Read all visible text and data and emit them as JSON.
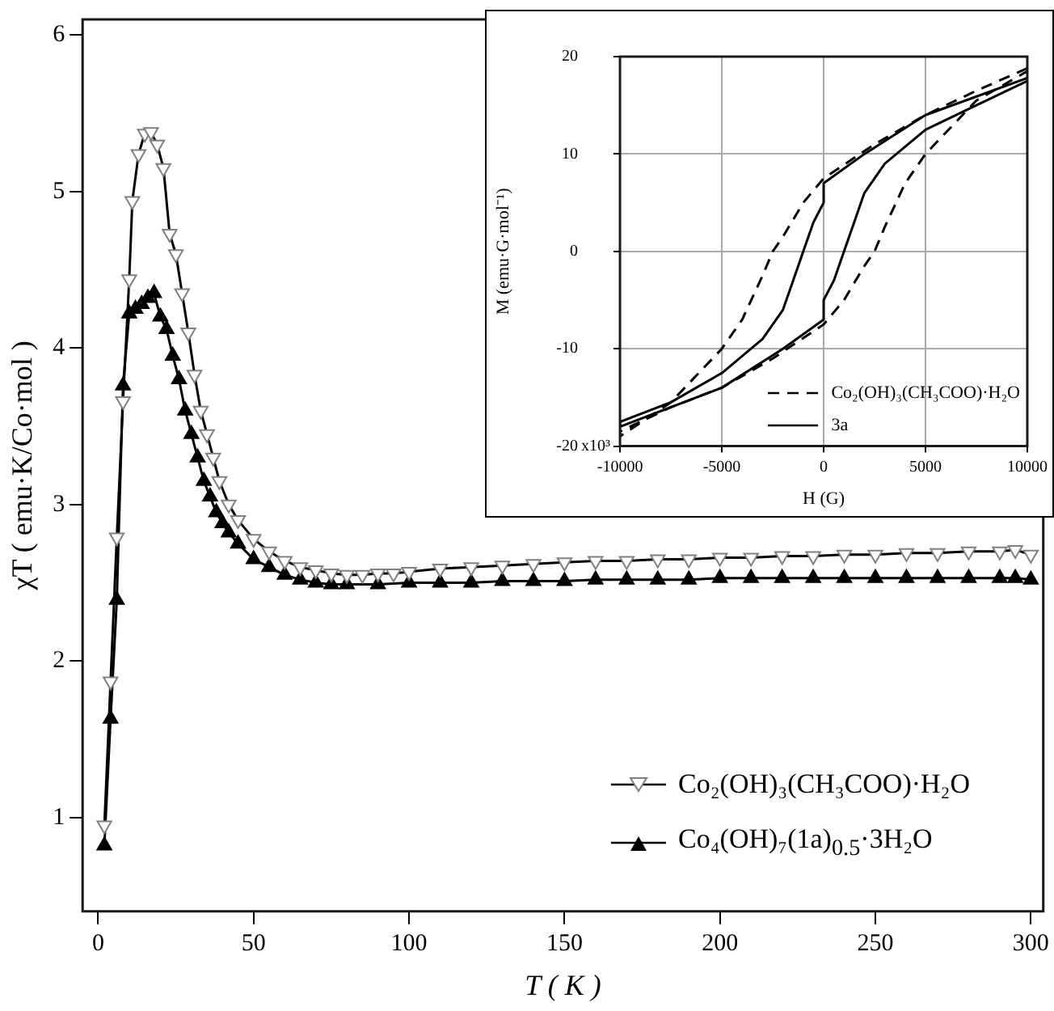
{
  "chart_data": [
    {
      "type": "line",
      "xlabel": "T ( K )",
      "ylabel": "χT ( emu·K/Co·mol )",
      "xlim": [
        -5,
        304
      ],
      "ylim": [
        0.4,
        6.1
      ],
      "xticks": [
        0,
        50,
        100,
        150,
        200,
        250,
        300
      ],
      "yticks": [
        1,
        2,
        3,
        4,
        5,
        6
      ],
      "grid": false,
      "legend": "bottom right",
      "marker": "triangle",
      "line_style": "solid",
      "series": [
        {
          "name": "Co₂(OH)₃(CH₃COO)·H₂O",
          "color": "#000000",
          "x": [
            2,
            4,
            6,
            8,
            10,
            11,
            13,
            15,
            17,
            19,
            21,
            23,
            25,
            27,
            29,
            31,
            33,
            35,
            37,
            39,
            42,
            45,
            50,
            55,
            60,
            65,
            70,
            75,
            80,
            85,
            90,
            95,
            100,
            110,
            120,
            130,
            140,
            150,
            160,
            170,
            180,
            190,
            200,
            210,
            220,
            230,
            240,
            250,
            260,
            270,
            280,
            290,
            295,
            300
          ],
          "values": [
            0.95,
            1.87,
            2.79,
            3.66,
            4.44,
            4.94,
            5.24,
            5.37,
            5.38,
            5.3,
            5.15,
            4.73,
            4.6,
            4.35,
            4.1,
            3.83,
            3.6,
            3.45,
            3.3,
            3.15,
            3.0,
            2.9,
            2.78,
            2.7,
            2.64,
            2.6,
            2.58,
            2.56,
            2.55,
            2.55,
            2.56,
            2.56,
            2.57,
            2.59,
            2.6,
            2.61,
            2.62,
            2.63,
            2.64,
            2.64,
            2.65,
            2.65,
            2.66,
            2.66,
            2.67,
            2.67,
            2.68,
            2.68,
            2.69,
            2.69,
            2.7,
            2.7,
            2.71,
            2.68
          ]
        },
        {
          "name": "Co₄(OH)₇(1a)$_{0.5}$·3H₂O",
          "color": "#000000",
          "x": [
            2,
            4,
            6,
            8,
            10,
            12,
            14,
            16,
            18,
            20,
            22,
            24,
            26,
            28,
            30,
            32,
            34,
            36,
            38,
            40,
            42,
            45,
            50,
            55,
            60,
            65,
            70,
            75,
            80,
            90,
            100,
            110,
            120,
            130,
            140,
            150,
            160,
            170,
            180,
            190,
            200,
            210,
            220,
            230,
            240,
            250,
            260,
            270,
            280,
            290,
            295,
            300
          ],
          "values": [
            0.82,
            1.63,
            2.39,
            3.76,
            4.22,
            4.25,
            4.28,
            4.32,
            4.35,
            4.2,
            4.12,
            3.95,
            3.8,
            3.6,
            3.45,
            3.3,
            3.15,
            3.05,
            2.95,
            2.88,
            2.82,
            2.75,
            2.65,
            2.6,
            2.55,
            2.52,
            2.5,
            2.49,
            2.49,
            2.49,
            2.5,
            2.5,
            2.5,
            2.51,
            2.51,
            2.51,
            2.52,
            2.52,
            2.52,
            2.52,
            2.53,
            2.53,
            2.53,
            2.53,
            2.53,
            2.53,
            2.53,
            2.53,
            2.53,
            2.53,
            2.53,
            2.52
          ]
        }
      ]
    },
    {
      "type": "line",
      "xlabel": "H (G)",
      "ylabel": "M (emu·G·mol⁻¹)",
      "xlim": [
        -10000,
        10000
      ],
      "ylim": [
        -20,
        20
      ],
      "xticks": [
        -10000,
        -5000,
        0,
        5000,
        10000
      ],
      "yticks": [
        -20,
        -10,
        0,
        10,
        20
      ],
      "annotations": [
        "x10³"
      ],
      "grid": true,
      "legend": "bottom right",
      "marker": "none",
      "series": [
        {
          "name": "Co₂(OH)₃(CH₃COO)·H₂O",
          "color": "#000000",
          "line_style": "dashed",
          "x": [
            10000,
            7500,
            5000,
            2500,
            0,
            -1000,
            -2000,
            -2500,
            -3000,
            -4000,
            -5000,
            -7500,
            -10000,
            -10000,
            -7500,
            -5000,
            -2500,
            0,
            1000,
            2000,
            2500,
            3000,
            4000,
            5000,
            7500,
            10000
          ],
          "values": [
            18.8,
            16.5,
            14,
            11,
            7.5,
            5,
            1.5,
            0,
            -2.5,
            -7,
            -10,
            -15.5,
            -19,
            -18.5,
            -16,
            -14,
            -11,
            -7.5,
            -5,
            -1.5,
            0,
            2.5,
            7,
            10,
            15.5,
            18.5
          ]
        },
        {
          "name": "3a",
          "color": "#000000",
          "line_style": "solid",
          "x": [
            10000,
            5000,
            2000,
            0,
            0,
            -500,
            -1000,
            -1500,
            -2000,
            -3000,
            -5000,
            -7500,
            -10000,
            -10000,
            -5000,
            -2000,
            0,
            0,
            500,
            1000,
            1500,
            2000,
            3000,
            5000,
            7500,
            10000
          ],
          "values": [
            17.8,
            14,
            10,
            7,
            5,
            3,
            0,
            -3,
            -6,
            -9,
            -12.5,
            -15.5,
            -17.5,
            -18,
            -14,
            -10,
            -7,
            -5,
            -3,
            0,
            3,
            6,
            9,
            12.5,
            15,
            17.5
          ]
        }
      ]
    }
  ]
}
